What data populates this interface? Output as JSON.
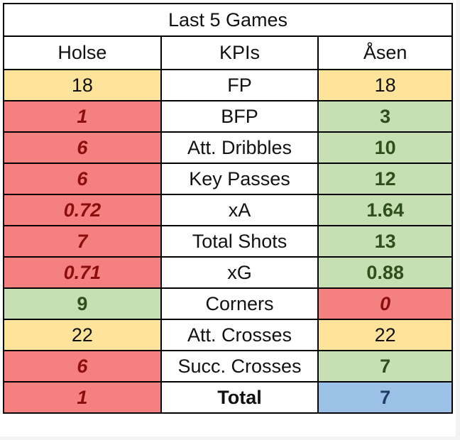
{
  "title": "Last 5 Games",
  "headers": {
    "left": "Holse",
    "middle": "KPIs",
    "right": "Åsen"
  },
  "rows": [
    {
      "kpi": "FP",
      "left": "18",
      "right": "18",
      "left_status": "tie",
      "right_status": "tie"
    },
    {
      "kpi": "BFP",
      "left": "1",
      "right": "3",
      "left_status": "worse",
      "right_status": "better"
    },
    {
      "kpi": "Att. Dribbles",
      "left": "6",
      "right": "10",
      "left_status": "worse",
      "right_status": "better"
    },
    {
      "kpi": "Key Passes",
      "left": "6",
      "right": "12",
      "left_status": "worse",
      "right_status": "better"
    },
    {
      "kpi": "xA",
      "left": "0.72",
      "right": "1.64",
      "left_status": "worse",
      "right_status": "better"
    },
    {
      "kpi": "Total Shots",
      "left": "7",
      "right": "13",
      "left_status": "worse",
      "right_status": "better"
    },
    {
      "kpi": "xG",
      "left": "0.71",
      "right": "0.88",
      "left_status": "worse",
      "right_status": "better"
    },
    {
      "kpi": "Corners",
      "left": "9",
      "right": "0",
      "left_status": "better",
      "right_status": "worse"
    },
    {
      "kpi": "Att. Crosses",
      "left": "22",
      "right": "22",
      "left_status": "tie",
      "right_status": "tie"
    },
    {
      "kpi": "Succ. Crosses",
      "left": "6",
      "right": "7",
      "left_status": "worse",
      "right_status": "better"
    }
  ],
  "total": {
    "kpi": "Total",
    "left": "1",
    "right": "7",
    "left_status": "worse",
    "right_status": "winner"
  },
  "colors": {
    "worse_fill": "#f4807f",
    "better_fill": "#c6e0b4",
    "tie_fill": "#fee49b",
    "winner_fill": "#9bc1e6"
  }
}
